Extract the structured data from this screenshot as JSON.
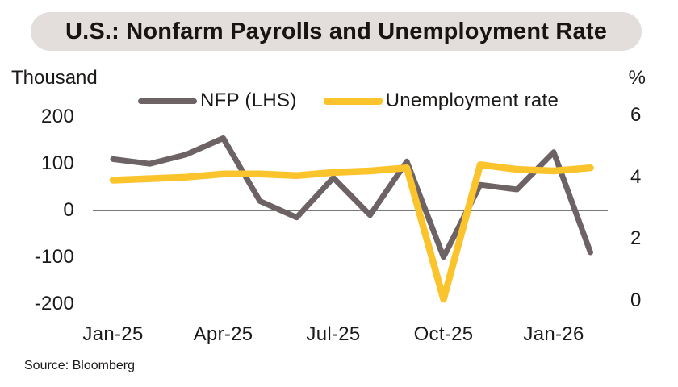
{
  "chart_data": {
    "type": "line",
    "title": "U.S.: Nonfarm Payrolls and Unemployment Rate",
    "source": "Source: Bloomberg",
    "x": [
      "Jan-25",
      "Feb-25",
      "Mar-25",
      "Apr-25",
      "May-25",
      "Jun-25",
      "Jul-25",
      "Aug-25",
      "Sep-25",
      "Oct-25",
      "Nov-25",
      "Dec-25",
      "Jan-26",
      "Feb-26"
    ],
    "x_tick_labels": [
      "Jan-25",
      "Apr-25",
      "Jul-25",
      "Oct-25",
      "Jan-26"
    ],
    "series": [
      {
        "name": "NFP (LHS)",
        "axis": "left",
        "color": "#6d6365",
        "stroke_width": 7,
        "values": [
          110,
          100,
          120,
          155,
          20,
          -15,
          70,
          -10,
          105,
          -100,
          55,
          45,
          125,
          -90
        ]
      },
      {
        "name": "Unemployment rate",
        "axis": "right",
        "color": "#fbc42d",
        "stroke_width": 8.5,
        "values": [
          3.9,
          3.95,
          4.0,
          4.1,
          4.1,
          4.05,
          4.15,
          4.2,
          4.3,
          0.05,
          4.4,
          4.25,
          4.2,
          4.3
        ]
      }
    ],
    "left_axis": {
      "title": "Thousand",
      "ticks": [
        200,
        100,
        0,
        -100,
        -200
      ],
      "range": [
        -200,
        200
      ]
    },
    "right_axis": {
      "title": "%",
      "ticks": [
        6,
        4,
        2,
        0
      ],
      "range": [
        0,
        6
      ]
    },
    "zero_line": true,
    "grid": false,
    "legend_position": "top",
    "colors": {
      "title_pill_bg": "#e3dedc",
      "title_text": "#171412",
      "zero_line": "#4d4d4d"
    }
  }
}
